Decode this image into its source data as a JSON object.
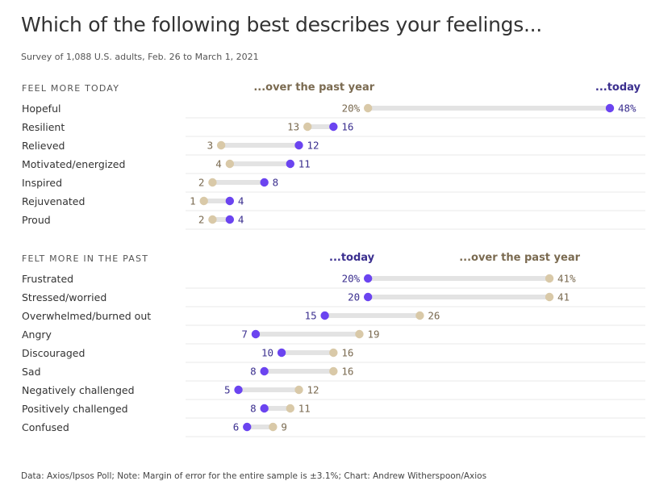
{
  "header": {
    "title": "Which of the following best describes your feelings...",
    "subtitle": "Survey of 1,088 U.S. adults, Feb. 26 to March 1, 2021"
  },
  "footer": {
    "source": "Data: Axios/Ipsos Poll; Note: Margin of error for the entire sample is ±3.1%; Chart: Andrew Witherspoon/Axios"
  },
  "colors": {
    "today": "#6b44f0",
    "past_year": "#d9c9a8",
    "today_text": "#3b2f8f",
    "past_year_text": "#7a6a50",
    "bar": "#e3e3e3",
    "grid": "#e8e8e8"
  },
  "chart_data": {
    "type": "dumbbell",
    "title": "Which of the following best describes your feelings...",
    "units": "percent",
    "series_names": {
      "past_year": "...over the past year",
      "today": "...today"
    },
    "sections": [
      {
        "heading": "FEEL MORE TODAY",
        "left_header": "...over the past year",
        "right_header": "...today",
        "rows": [
          {
            "label": "Hopeful",
            "past_year": 20,
            "today": 48,
            "past_year_text": "20%",
            "today_text": "48%"
          },
          {
            "label": "Resilient",
            "past_year": 13,
            "today": 16,
            "past_year_text": "13",
            "today_text": "16"
          },
          {
            "label": "Relieved",
            "past_year": 3,
            "today": 12,
            "past_year_text": "3",
            "today_text": "12"
          },
          {
            "label": "Motivated/energized",
            "past_year": 4,
            "today": 11,
            "past_year_text": "4",
            "today_text": "11"
          },
          {
            "label": "Inspired",
            "past_year": 2,
            "today": 8,
            "past_year_text": "2",
            "today_text": "8"
          },
          {
            "label": "Rejuvenated",
            "past_year": 1,
            "today": 4,
            "past_year_text": "1",
            "today_text": "4"
          },
          {
            "label": "Proud",
            "past_year": 2,
            "today": 4,
            "past_year_text": "2",
            "today_text": "4"
          }
        ]
      },
      {
        "heading": "FELT MORE IN THE PAST",
        "left_header": "...today",
        "right_header": "...over the past year",
        "rows": [
          {
            "label": "Frustrated",
            "today": 20,
            "past_year": 41,
            "today_text": "20%",
            "past_year_text": "41%"
          },
          {
            "label": "Stressed/worried",
            "today": 20,
            "past_year": 41,
            "today_text": "20",
            "past_year_text": "41"
          },
          {
            "label": "Overwhelmed/burned out",
            "today": 15,
            "past_year": 26,
            "today_text": "15",
            "past_year_text": "26"
          },
          {
            "label": "Angry",
            "today": 7,
            "past_year": 19,
            "today_text": "7",
            "past_year_text": "19"
          },
          {
            "label": "Discouraged",
            "today": 10,
            "past_year": 16,
            "today_text": "10",
            "past_year_text": "16"
          },
          {
            "label": "Sad",
            "today": 8,
            "past_year": 16,
            "today_text": "8",
            "past_year_text": "16"
          },
          {
            "label": "Negatively challenged",
            "today": 5,
            "past_year": 12,
            "today_text": "5",
            "past_year_text": "12"
          },
          {
            "label": "Positively challenged",
            "today": 8,
            "past_year": 11,
            "today_text": "8",
            "past_year_text": "11"
          },
          {
            "label": "Confused",
            "today": 6,
            "past_year": 9,
            "today_text": "6",
            "past_year_text": "9"
          }
        ]
      }
    ],
    "x_range": [
      0,
      48
    ]
  }
}
